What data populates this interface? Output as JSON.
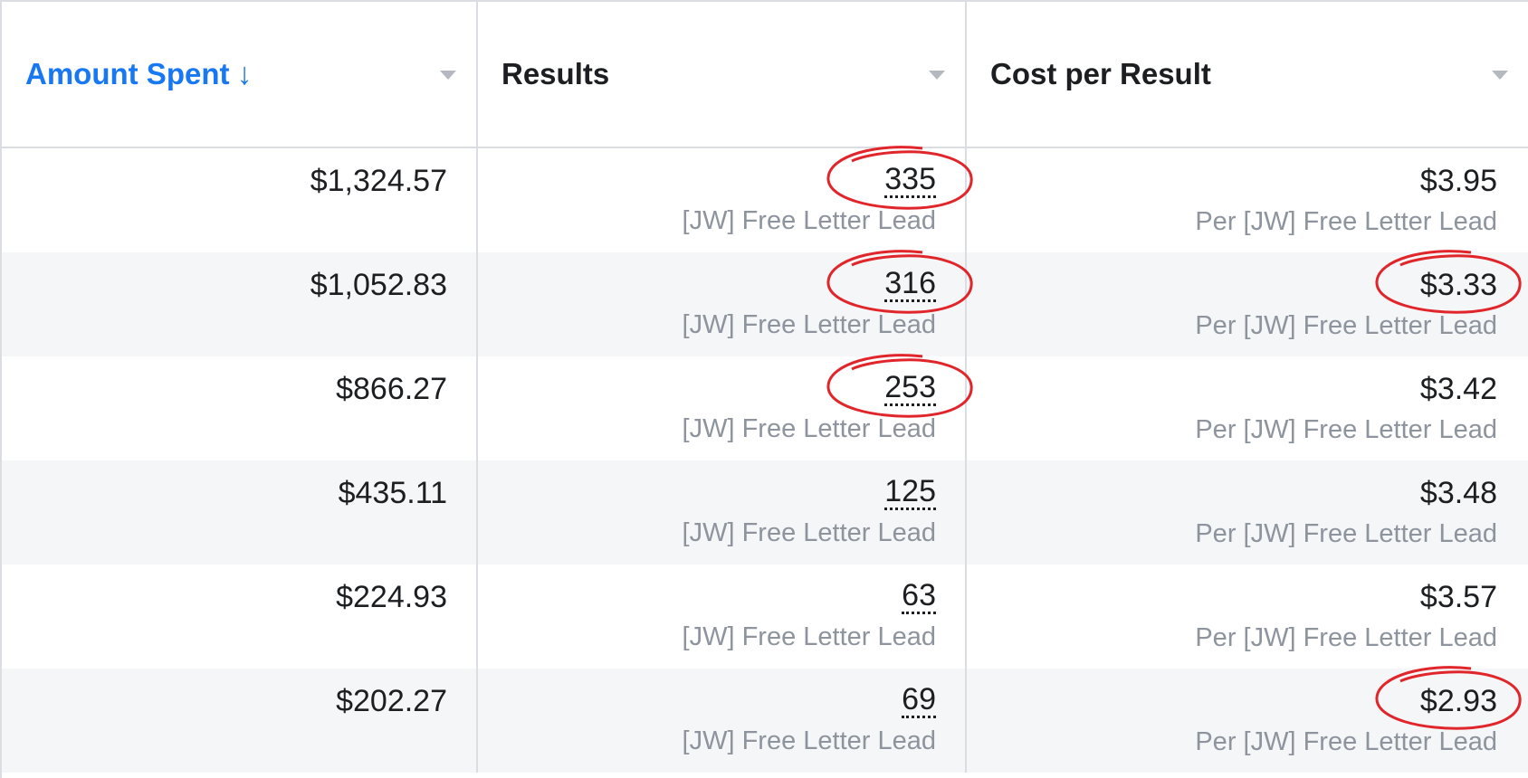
{
  "columns": [
    {
      "label": "Amount Spent",
      "sort_arrow": "↓",
      "sorted": true
    },
    {
      "label": "Results"
    },
    {
      "label": "Cost per Result"
    }
  ],
  "rows": [
    {
      "amount": "$1,324.57",
      "results": "335",
      "result_type": "[JW] Free Letter Lead",
      "cost": "$3.95",
      "cost_type": "Per [JW] Free Letter Lead"
    },
    {
      "amount": "$1,052.83",
      "results": "316",
      "result_type": "[JW] Free Letter Lead",
      "cost": "$3.33",
      "cost_type": "Per [JW] Free Letter Lead"
    },
    {
      "amount": "$866.27",
      "results": "253",
      "result_type": "[JW] Free Letter Lead",
      "cost": "$3.42",
      "cost_type": "Per [JW] Free Letter Lead"
    },
    {
      "amount": "$435.11",
      "results": "125",
      "result_type": "[JW] Free Letter Lead",
      "cost": "$3.48",
      "cost_type": "Per [JW] Free Letter Lead"
    },
    {
      "amount": "$224.93",
      "results": "63",
      "result_type": "[JW] Free Letter Lead",
      "cost": "$3.57",
      "cost_type": "Per [JW] Free Letter Lead"
    },
    {
      "amount": "$202.27",
      "results": "69",
      "result_type": "[JW] Free Letter Lead",
      "cost": "$2.93",
      "cost_type": "Per [JW] Free Letter Lead"
    }
  ],
  "colors": {
    "sorted_header": "#1877f2",
    "annotation_circle": "#e0262b",
    "stripe": "#f5f6f7"
  }
}
